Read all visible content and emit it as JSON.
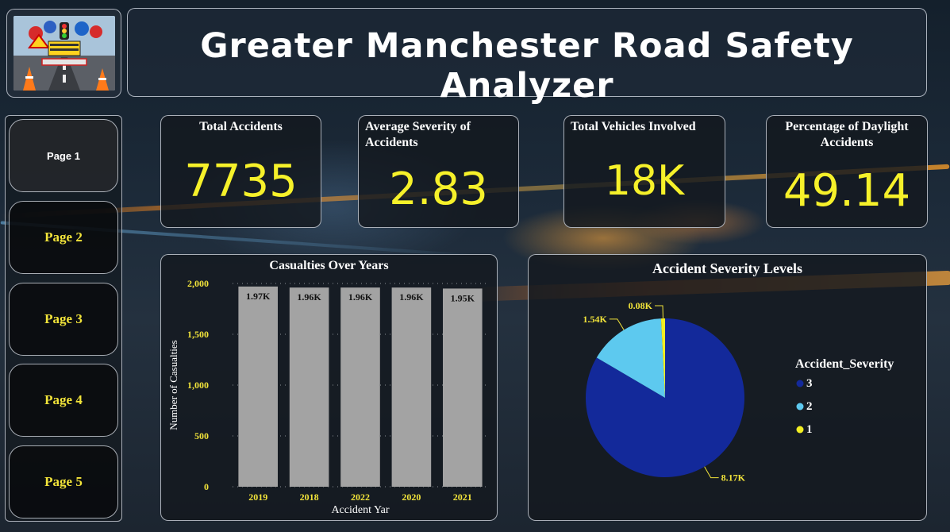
{
  "header": {
    "title": "Greater Manchester Road Safety Analyzer"
  },
  "nav": {
    "items": [
      {
        "label": "Page 1",
        "active": true
      },
      {
        "label": "Page 2",
        "active": false
      },
      {
        "label": "Page 3",
        "active": false
      },
      {
        "label": "Page 4",
        "active": false
      },
      {
        "label": "Page 5",
        "active": false
      }
    ]
  },
  "kpis": [
    {
      "title": "Total Accidents",
      "value": "7735"
    },
    {
      "title": "Average Severity of Accidents",
      "value": "2.83"
    },
    {
      "title": "Total Vehicles Involved",
      "value": "18K"
    },
    {
      "title": "Percentage of Daylight Accidents",
      "value": "49.14"
    }
  ],
  "colors": {
    "accent_yellow": "#f6f12a",
    "bar_gray": "#a3a3a3",
    "sev3": "#13299a",
    "sev2": "#5dc9ef",
    "sev1": "#f2ee23"
  },
  "chart_data": [
    {
      "type": "bar",
      "title": "Casualties Over Years",
      "xlabel": "Accident Yar",
      "ylabel": "Number of Casualties",
      "categories": [
        "2019",
        "2018",
        "2022",
        "2020",
        "2021"
      ],
      "values": [
        1970,
        1960,
        1960,
        1960,
        1950
      ],
      "data_labels": [
        "1.97K",
        "1.96K",
        "1.96K",
        "1.96K",
        "1.95K"
      ],
      "ylim": [
        0,
        2000
      ],
      "yticks": [
        0,
        500,
        1000,
        1500,
        2000
      ],
      "ytick_labels": [
        "0",
        "500",
        "1,000",
        "1,500",
        "2,000"
      ],
      "grid": true
    },
    {
      "type": "pie",
      "title": "Accident Severity Levels",
      "legend_title": "Accident_Severity",
      "legend_position": "right",
      "slices": [
        {
          "name": "3",
          "value": 8170,
          "label": "8.17K"
        },
        {
          "name": "2",
          "value": 1540,
          "label": "1.54K"
        },
        {
          "name": "1",
          "value": 80,
          "label": "0.08K"
        }
      ]
    }
  ]
}
